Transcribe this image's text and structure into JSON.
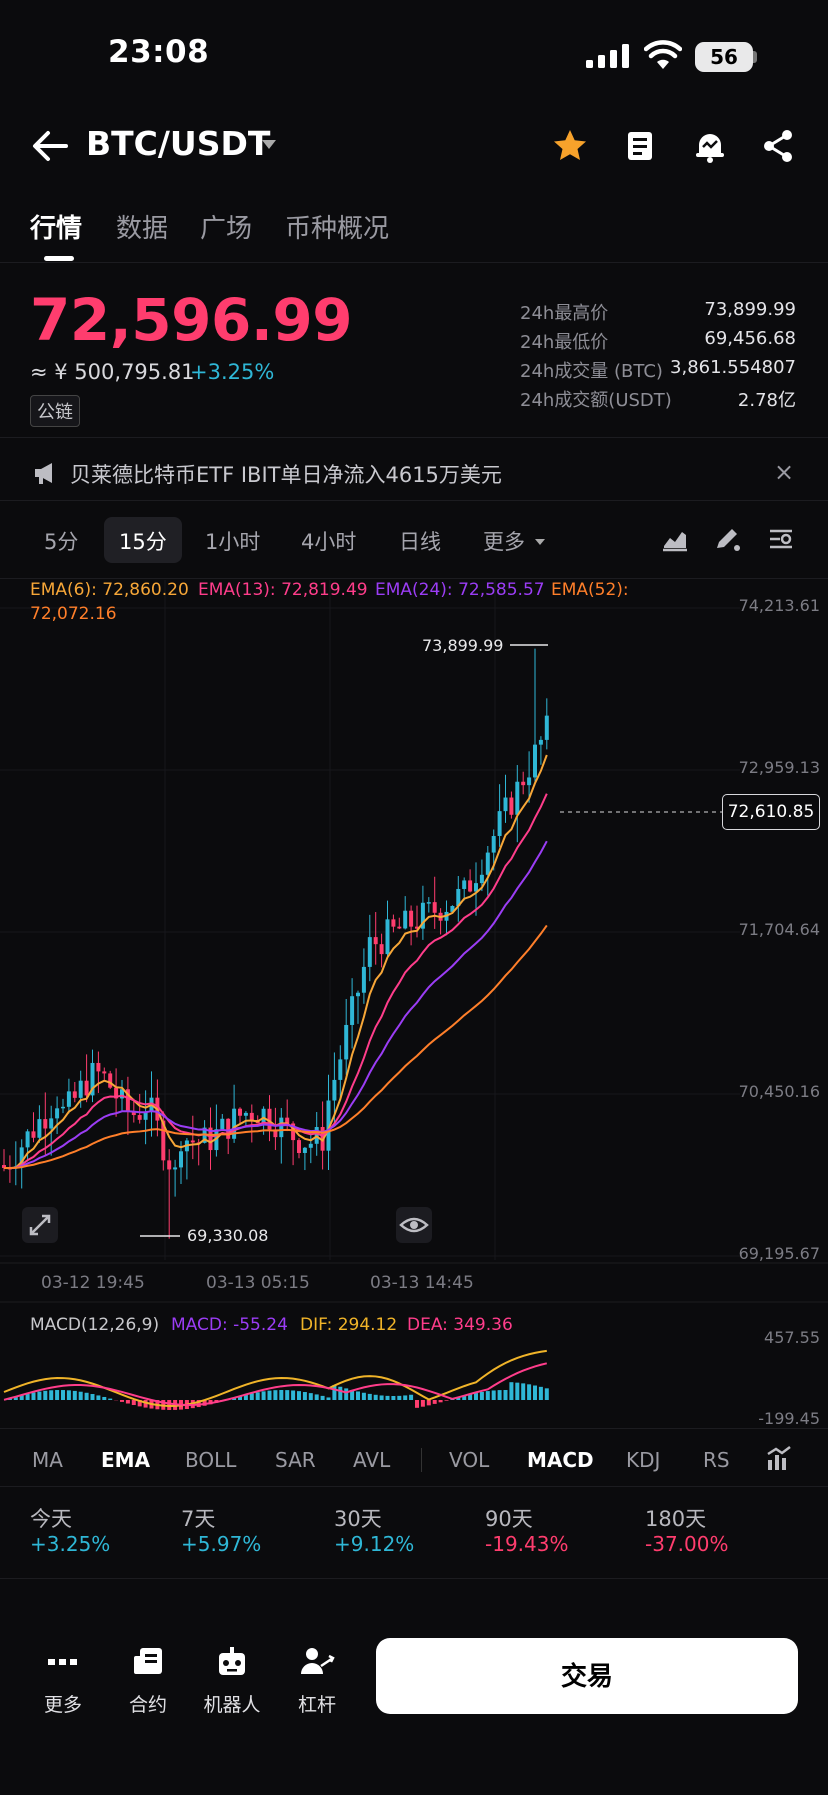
{
  "status": {
    "time": "23:08",
    "battery": "56"
  },
  "header": {
    "pair": "BTC/USDT"
  },
  "tabs": [
    "行情",
    "数据",
    "广场",
    "币种概况"
  ],
  "price": {
    "last": "72,596.99",
    "cny": "≈ ¥ 500,795.81",
    "change": "+3.25%",
    "tag": "公链"
  },
  "stats": [
    {
      "label": "24h最高价",
      "value": "73,899.99"
    },
    {
      "label": "24h最低价",
      "value": "69,456.68"
    },
    {
      "label": "24h成交量 (BTC)",
      "value": "3,861.554807"
    },
    {
      "label": "24h成交额(USDT)",
      "value": "2.78亿"
    }
  ],
  "news": {
    "text": "贝莱德比特币ETF IBIT单日净流入4615万美元",
    "close": "×"
  },
  "intervals": [
    "5分",
    "15分",
    "1小时",
    "4小时",
    "日线",
    "更多"
  ],
  "ema": {
    "e6": "EMA(6): 72,860.20",
    "e13": "EMA(13): 72,819.49",
    "e24": "EMA(24): 72,585.57",
    "e52": "EMA(52):",
    "e52v": "72,072.16"
  },
  "axis": {
    "y": [
      "74,213.61",
      "72,959.13",
      "71,704.64",
      "70,450.16",
      "69,195.67"
    ],
    "x": [
      "03-12 19:45",
      "03-13 05:15",
      "03-13 14:45"
    ],
    "current": "72,610.85",
    "high": "73,899.99",
    "low": "69,330.08",
    "macd_top": "457.55",
    "macd_bottom": "-199.45"
  },
  "macd": {
    "title": "MACD(12,26,9)",
    "macd": "MACD: -55.24",
    "dif": "DIF: 294.12",
    "dea": "DEA: 349.36"
  },
  "indicators": [
    "MA",
    "EMA",
    "BOLL",
    "SAR",
    "AVL",
    "VOL",
    "MACD",
    "KDJ",
    "RS"
  ],
  "performance": [
    {
      "label": "今天",
      "value": "+3.25%"
    },
    {
      "label": "7天",
      "value": "+5.97%"
    },
    {
      "label": "30天",
      "value": "+9.12%"
    },
    {
      "label": "90天",
      "value": "-19.43%"
    },
    {
      "label": "180天",
      "value": "-37.00%"
    }
  ],
  "bottom_nav": [
    "更多",
    "合约",
    "机器人",
    "杠杆"
  ],
  "trade_button": "交易",
  "colors": {
    "up": "#2fb7d6",
    "down": "#ff3d6e",
    "ema6": "#f7a738",
    "ema13": "#ff3d8b",
    "ema24": "#9b3df5",
    "ema52": "#ff7f2a",
    "dif": "#f0b429",
    "dea": "#ff3d8b",
    "macd": "#9b3df5"
  }
}
